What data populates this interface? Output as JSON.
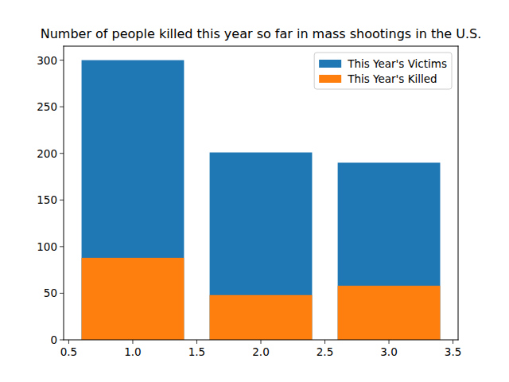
{
  "chart_data": {
    "type": "bar",
    "title": "Number of people killed this year so far in mass shootings in the U.S.",
    "x": [
      1,
      2,
      3
    ],
    "series": [
      {
        "name": "This Year's Victims",
        "color": "#1f77b4",
        "values": [
          300,
          201,
          190
        ]
      },
      {
        "name": "This Year's Killed",
        "color": "#ff7f0e",
        "values": [
          88,
          48,
          58
        ]
      }
    ],
    "stacked": false,
    "xlim": [
      0.46,
      3.54
    ],
    "xticks": [
      0.5,
      {
        "value": 1,
        "label": "1.0"
      },
      1.5,
      {
        "value": 2,
        "label": "2.0"
      },
      2.5,
      {
        "value": 3,
        "label": "3.0"
      },
      3.5
    ],
    "ylim": [
      0,
      315
    ],
    "yticks": [
      0,
      50,
      100,
      150,
      200,
      250,
      300
    ],
    "grid": false,
    "legend": "upper right"
  }
}
